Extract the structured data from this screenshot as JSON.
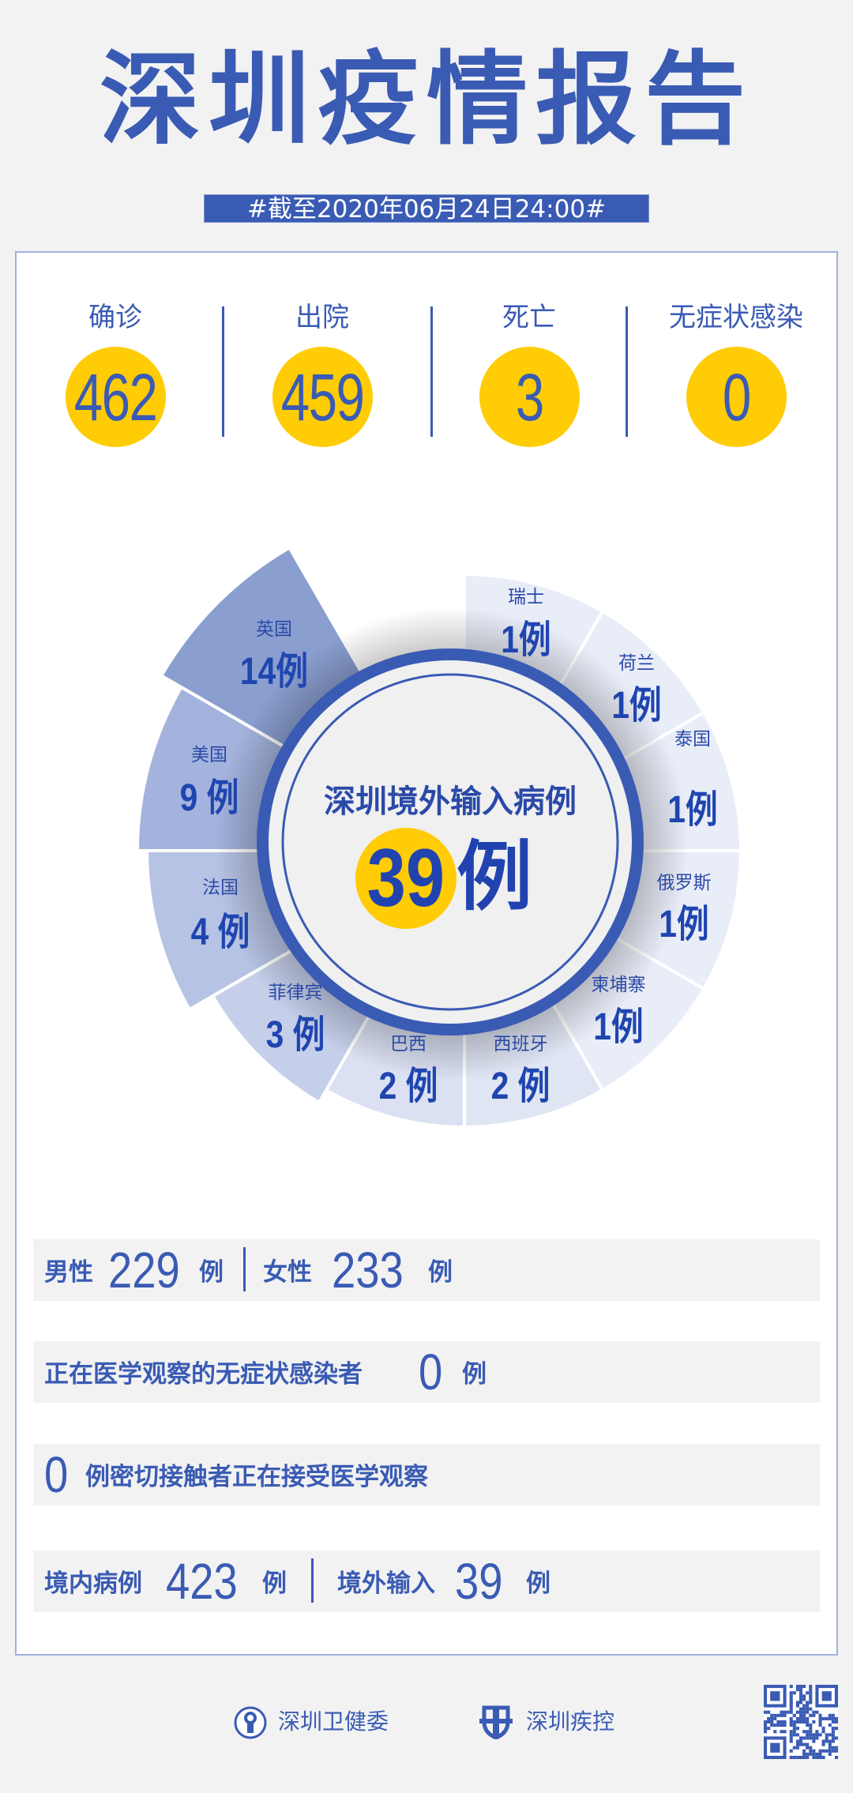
{
  "header": {
    "title": "深圳疫情报告",
    "date_banner": "#截至2020年06月24日24:00#"
  },
  "stats": [
    {
      "label": "确诊",
      "value": "462"
    },
    {
      "label": "出院",
      "value": "459"
    },
    {
      "label": "死亡",
      "value": "3"
    },
    {
      "label": "无症状感染",
      "value": "0"
    }
  ],
  "chart_data": {
    "type": "pie",
    "title": "深圳境外输入病例",
    "total": "39",
    "total_unit": "例",
    "unit": "例",
    "categories": [
      "瑞士",
      "荷兰",
      "泰国",
      "俄罗斯",
      "柬埔寨",
      "西班牙",
      "巴西",
      "菲律宾",
      "法国",
      "美国",
      "英国"
    ],
    "values": [
      1,
      1,
      1,
      1,
      1,
      2,
      2,
      3,
      4,
      9,
      14
    ],
    "value_labels": [
      "1例",
      "1例",
      "1例",
      "1例",
      "1例",
      "2 例",
      "2 例",
      "3 例",
      "4 例",
      "9 例",
      "14例"
    ],
    "colors": [
      "#e9edf8",
      "#e9edf8",
      "#e9edf8",
      "#e9edf8",
      "#e9edf8",
      "#dfe5f3",
      "#dbe1f2",
      "#c5cfea",
      "#b7c3e4",
      "#a3b3dd",
      "#8a9fd0"
    ]
  },
  "bars": {
    "gender": {
      "male_label": "男性",
      "male_value": "229",
      "female_label": "女性",
      "female_value": "233",
      "unit": "例"
    },
    "asymptomatic": {
      "label": "正在医学观察的无症状感染者",
      "value": "0",
      "unit": "例"
    },
    "contacts": {
      "value": "0",
      "label": "例密切接触者正在接受医学观察"
    },
    "origin": {
      "local_label": "境内病例",
      "local_value": "423",
      "import_label": "境外输入",
      "import_value": "39",
      "unit": "例"
    }
  },
  "footer": {
    "org1": "深圳卫健委",
    "org2": "深圳疾控"
  },
  "colors": {
    "primary": "#3a5bb4",
    "accent": "#ffcc05",
    "background": "#f2f2f2"
  }
}
